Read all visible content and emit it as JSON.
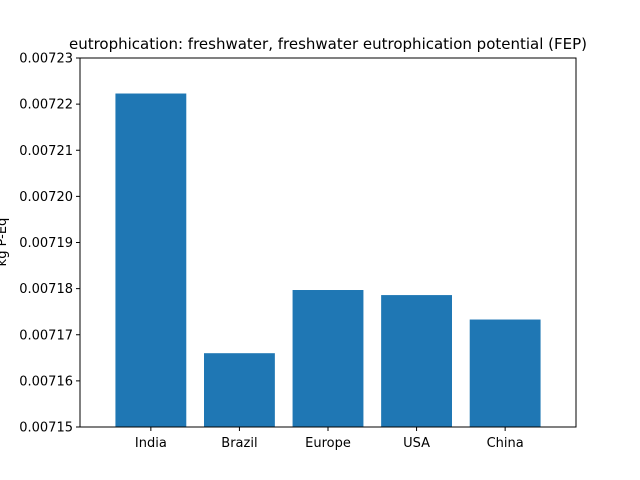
{
  "chart_data": {
    "type": "bar",
    "title": "eutrophication: freshwater, freshwater eutrophication potential (FEP)",
    "xlabel": "",
    "ylabel": "kg P-Eq",
    "categories": [
      "India",
      "Brazil",
      "Europe",
      "USA",
      "China"
    ],
    "values": [
      0.0072223,
      0.007166,
      0.0071797,
      0.0071786,
      0.0071733
    ],
    "ylim": [
      0.00715,
      0.00723
    ],
    "yticks": [
      "0.00715",
      "0.00716",
      "0.00717",
      "0.00718",
      "0.00719",
      "0.00720",
      "0.00721",
      "0.00722",
      "0.00723"
    ],
    "grid": false,
    "bar_color": "#1f77b4"
  }
}
